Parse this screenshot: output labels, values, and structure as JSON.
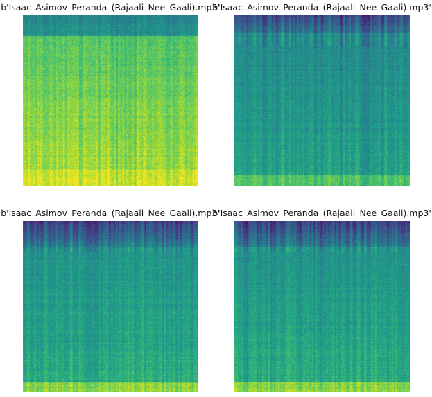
{
  "chart_data": [
    {
      "type": "heatmap",
      "title": "b'Isaac_Asimov_Peranda_(Rajaali_Nee_Gaali).mp3'",
      "axes": "off",
      "grid": false,
      "colormap": "viridis",
      "profile": "bright"
    },
    {
      "type": "heatmap",
      "title": "b'Isaac_Asimov_Peranda_(Rajaali_Nee_Gaali).mp3'",
      "axes": "off",
      "grid": false,
      "colormap": "viridis",
      "profile": "mid"
    },
    {
      "type": "heatmap",
      "title": "b'Isaac_Asimov_Peranda_(Rajaali_Nee_Gaali).mp3'",
      "axes": "off",
      "grid": false,
      "colormap": "viridis",
      "profile": "dark-top"
    },
    {
      "type": "heatmap",
      "title": "b'Isaac_Asimov_Peranda_(Rajaali_Nee_Gaali).mp3'",
      "axes": "off",
      "grid": false,
      "colormap": "viridis",
      "profile": "dark-top"
    }
  ]
}
